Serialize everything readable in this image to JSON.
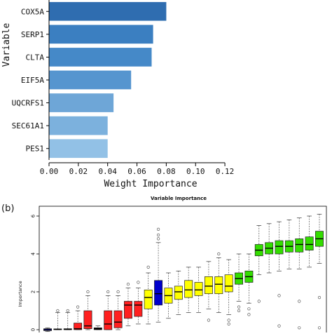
{
  "chart_data": [
    {
      "type": "bar",
      "orientation": "horizontal",
      "categories": [
        "COX5A",
        "SERP1",
        "CLTA",
        "EIF5A",
        "UQCRFS1",
        "SEC61A1",
        "PES1"
      ],
      "values": [
        0.08,
        0.071,
        0.07,
        0.056,
        0.044,
        0.04,
        0.04
      ],
      "colors": [
        "#2f6db0",
        "#3b7fc1",
        "#4589c8",
        "#5695cf",
        "#6ea6d7",
        "#7cb1dd",
        "#92c1e6"
      ],
      "xlabel": "Weight Importance",
      "ylabel": "Variable",
      "xlim": [
        0,
        0.13
      ],
      "xticks": [
        0.0,
        0.02,
        0.04,
        0.06,
        0.08,
        0.1,
        0.12
      ],
      "xtick_labels": [
        "0.00",
        "0.02",
        "0.04",
        "0.06",
        "0.08",
        "0.10",
        "0.12"
      ],
      "grid": false
    },
    {
      "type": "boxplot",
      "panel_label": "(b)",
      "title": "Variable Importance",
      "ylabel": "Importance",
      "ylim": [
        0,
        6.3
      ],
      "yticks": [
        0,
        2,
        4,
        6
      ],
      "ytick_labels": [
        "0",
        "2",
        "4",
        "6"
      ],
      "boxes": [
        {
          "color": "#0000cc",
          "q1": -0.05,
          "median": 0.0,
          "q3": 0.05,
          "whisker_low": -0.1,
          "whisker_high": 0.1,
          "outliers": []
        },
        {
          "color": "#000000",
          "q1": 0.0,
          "median": 0.02,
          "q3": 0.04,
          "whisker_low": 0.0,
          "whisker_high": 0.9,
          "outliers": [
            1.0
          ]
        },
        {
          "color": "#ff2020",
          "q1": 0.0,
          "median": 0.02,
          "q3": 0.05,
          "whisker_low": 0.0,
          "whisker_high": 0.9,
          "outliers": [
            1.0
          ]
        },
        {
          "color": "#ff2020",
          "q1": 0.0,
          "median": 0.05,
          "q3": 0.35,
          "whisker_low": 0.0,
          "whisker_high": 1.0,
          "outliers": [
            1.2
          ]
        },
        {
          "color": "#ff2020",
          "q1": 0.05,
          "median": 0.2,
          "q3": 1.0,
          "whisker_low": 0.0,
          "whisker_high": 1.8,
          "outliers": [
            2.0
          ]
        },
        {
          "color": "#000000",
          "q1": 0.0,
          "median": 0.05,
          "q3": 0.1,
          "whisker_low": 0.0,
          "whisker_high": 0.2,
          "outliers": []
        },
        {
          "color": "#ff2020",
          "q1": 0.0,
          "median": 0.3,
          "q3": 1.0,
          "whisker_low": 0.0,
          "whisker_high": 1.8,
          "outliers": [
            2.0
          ]
        },
        {
          "color": "#ff2020",
          "q1": 0.1,
          "median": 0.4,
          "q3": 1.0,
          "whisker_low": 0.0,
          "whisker_high": 1.8,
          "outliers": [
            2.0
          ]
        },
        {
          "color": "#ff2020",
          "q1": 0.6,
          "median": 1.3,
          "q3": 1.5,
          "whisker_low": 0.2,
          "whisker_high": 2.2,
          "outliers": [
            2.4
          ]
        },
        {
          "color": "#ff2020",
          "q1": 0.7,
          "median": 1.3,
          "q3": 1.5,
          "whisker_low": 0.3,
          "whisker_high": 2.2,
          "outliers": [
            2.5
          ]
        },
        {
          "color": "#ffff00",
          "q1": 1.1,
          "median": 1.7,
          "q3": 2.1,
          "whisker_low": 0.3,
          "whisker_high": 3.0,
          "outliers": [
            3.3
          ]
        },
        {
          "color": "#0000cc",
          "q1": 1.3,
          "median": 1.9,
          "q3": 2.6,
          "whisker_low": 0.4,
          "whisker_high": 4.6,
          "outliers": [
            4.8,
            5.0,
            5.3
          ]
        },
        {
          "color": "#ffff00",
          "q1": 1.4,
          "median": 1.8,
          "q3": 2.2,
          "whisker_low": 0.6,
          "whisker_high": 3.0,
          "outliers": []
        },
        {
          "color": "#ffff00",
          "q1": 1.6,
          "median": 2.0,
          "q3": 2.3,
          "whisker_low": 0.8,
          "whisker_high": 3.1,
          "outliers": []
        },
        {
          "color": "#ffff00",
          "q1": 1.7,
          "median": 2.1,
          "q3": 2.6,
          "whisker_low": 0.9,
          "whisker_high": 3.3,
          "outliers": []
        },
        {
          "color": "#ffff00",
          "q1": 1.8,
          "median": 2.1,
          "q3": 2.5,
          "whisker_low": 0.9,
          "whisker_high": 3.3,
          "outliers": []
        },
        {
          "color": "#ffff00",
          "q1": 1.9,
          "median": 2.3,
          "q3": 2.8,
          "whisker_low": 1.1,
          "whisker_high": 3.6,
          "outliers": [
            0.5
          ]
        },
        {
          "color": "#ffff00",
          "q1": 1.9,
          "median": 2.4,
          "q3": 2.8,
          "whisker_low": 0.9,
          "whisker_high": 3.8,
          "outliers": [
            4.0
          ]
        },
        {
          "color": "#ffff00",
          "q1": 2.0,
          "median": 2.3,
          "q3": 2.9,
          "whisker_low": 0.8,
          "whisker_high": 3.7,
          "outliers": [
            0.3,
            0.5
          ]
        },
        {
          "color": "#33dd00",
          "q1": 2.4,
          "median": 2.7,
          "q3": 3.0,
          "whisker_low": 1.5,
          "whisker_high": 4.0,
          "outliers": [
            1.2,
            1.0
          ]
        },
        {
          "color": "#33dd00",
          "q1": 2.5,
          "median": 2.8,
          "q3": 3.1,
          "whisker_low": 1.4,
          "whisker_high": 4.0,
          "outliers": [
            1.1,
            0.8
          ]
        },
        {
          "color": "#33dd00",
          "q1": 3.9,
          "median": 4.2,
          "q3": 4.5,
          "whisker_low": 2.9,
          "whisker_high": 5.5,
          "outliers": [
            1.5
          ]
        },
        {
          "color": "#33dd00",
          "q1": 4.0,
          "median": 4.3,
          "q3": 4.6,
          "whisker_low": 3.0,
          "whisker_high": 5.6,
          "outliers": []
        },
        {
          "color": "#33dd00",
          "q1": 4.0,
          "median": 4.4,
          "q3": 4.7,
          "whisker_low": 3.1,
          "whisker_high": 5.7,
          "outliers": [
            1.8,
            0.2
          ]
        },
        {
          "color": "#33dd00",
          "q1": 4.1,
          "median": 4.4,
          "q3": 4.7,
          "whisker_low": 3.2,
          "whisker_high": 5.8,
          "outliers": []
        },
        {
          "color": "#33dd00",
          "q1": 4.1,
          "median": 4.5,
          "q3": 4.8,
          "whisker_low": 3.2,
          "whisker_high": 5.9,
          "outliers": [
            1.5,
            0.1
          ]
        },
        {
          "color": "#33dd00",
          "q1": 4.2,
          "median": 4.5,
          "q3": 4.9,
          "whisker_low": 3.3,
          "whisker_high": 6.0,
          "outliers": []
        },
        {
          "color": "#33dd00",
          "q1": 4.4,
          "median": 4.8,
          "q3": 5.2,
          "whisker_low": 3.5,
          "whisker_high": 6.1,
          "outliers": [
            1.7,
            0.1
          ]
        }
      ]
    }
  ]
}
